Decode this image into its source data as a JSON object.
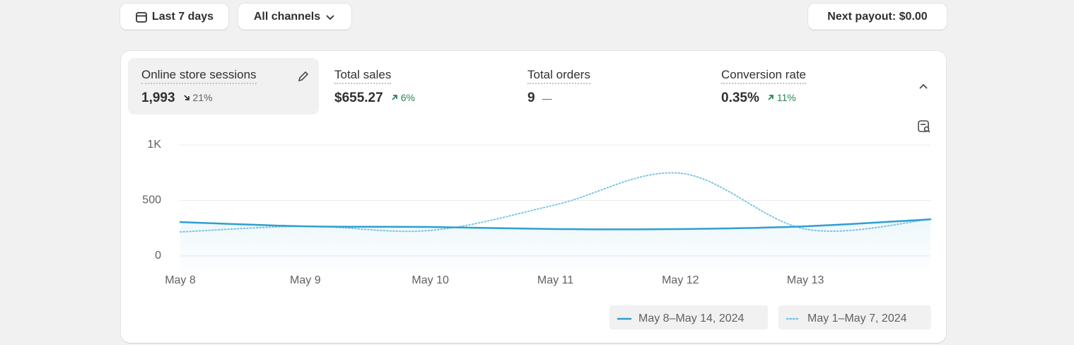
{
  "toolbar": {
    "date_range": "Last 7 days",
    "channels": "All channels",
    "payout": "Next payout: $0.00"
  },
  "metrics": [
    {
      "title": "Online store sessions",
      "value": "1,993",
      "change": "21%",
      "direction": "down"
    },
    {
      "title": "Total sales",
      "value": "$655.27",
      "change": "6%",
      "direction": "up"
    },
    {
      "title": "Total orders",
      "value": "9",
      "change": "—",
      "direction": "flat"
    },
    {
      "title": "Conversion rate",
      "value": "0.35%",
      "change": "11%",
      "direction": "up"
    }
  ],
  "chart_data": {
    "type": "line",
    "categories": [
      "May 8",
      "May 9",
      "May 10",
      "May 11",
      "May 12",
      "May 13",
      null
    ],
    "series": [
      {
        "name": "May 8–May 14, 2024",
        "color": "#2e9fd0",
        "style": "solid",
        "values": [
          305,
          267,
          261,
          242,
          242,
          267,
          330
        ]
      },
      {
        "name": "May 1–May 7, 2024",
        "color": "#7cc5e3",
        "style": "dotted",
        "values": [
          216,
          267,
          230,
          460,
          745,
          242,
          330
        ]
      }
    ],
    "ylim": [
      0,
      1000
    ],
    "yticks": [
      0,
      500,
      {
        "value": 1000,
        "label": "1K"
      }
    ],
    "grid": true
  }
}
